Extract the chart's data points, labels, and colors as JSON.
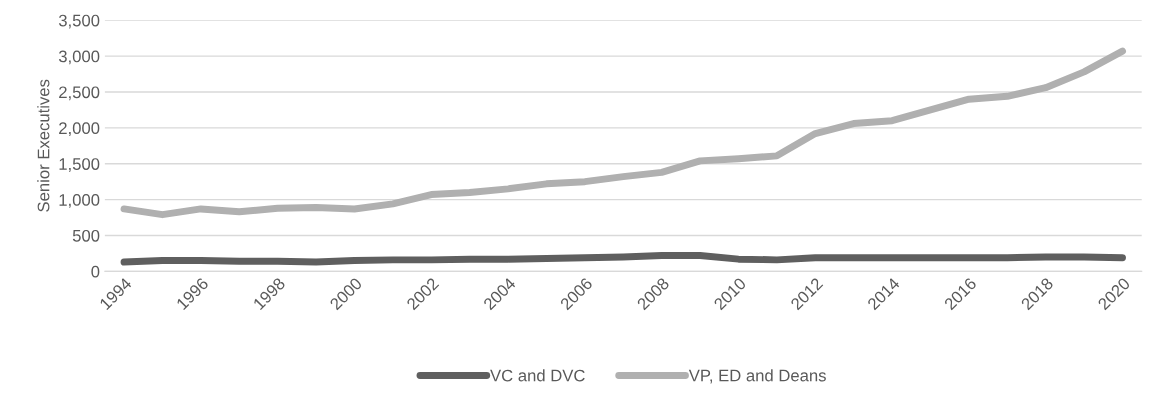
{
  "chart_data": {
    "type": "line",
    "ylabel": "Senior Executives",
    "categories": [
      "1994",
      null,
      "1996",
      null,
      "1998",
      null,
      "2000",
      null,
      "2002",
      null,
      "2004",
      null,
      "2006",
      null,
      "2008",
      null,
      "2010",
      null,
      "2012",
      null,
      "2014",
      null,
      "2016",
      null,
      "2018",
      null,
      "2020"
    ],
    "series": [
      {
        "name": "VC and DVC",
        "color": "#5f5f5f",
        "values": [
          130,
          150,
          150,
          140,
          140,
          130,
          150,
          160,
          160,
          170,
          170,
          180,
          190,
          200,
          220,
          220,
          170,
          160,
          190,
          190,
          190,
          190,
          190,
          190,
          200,
          200,
          190
        ]
      },
      {
        "name": "VP, ED and Deans",
        "color": "#b0b0b0",
        "values": [
          870,
          790,
          870,
          830,
          880,
          890,
          870,
          940,
          1070,
          1100,
          1150,
          1220,
          1250,
          1320,
          1380,
          1540,
          1570,
          1610,
          1920,
          2060,
          2100,
          2250,
          2400,
          2440,
          2560,
          2780,
          3070
        ]
      }
    ],
    "ylim": [
      0,
      3500
    ],
    "yticks": [
      {
        "value": 0,
        "label": "0"
      },
      {
        "value": 500,
        "label": "500"
      },
      {
        "value": 1000,
        "label": "1,000"
      },
      {
        "value": 1500,
        "label": "1,500"
      },
      {
        "value": 2000,
        "label": "2,000"
      },
      {
        "value": 2500,
        "label": "2,500"
      },
      {
        "value": 3000,
        "label": "3,000"
      },
      {
        "value": 3500,
        "label": "3,500"
      }
    ],
    "grid": "y",
    "legend": "bottom"
  }
}
